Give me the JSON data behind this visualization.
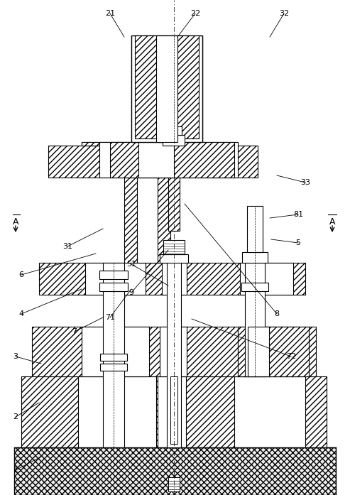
{
  "bg_color": "#ffffff",
  "line_color": "#000000",
  "figsize": [
    4.93,
    6.97
  ],
  "dpi": 100
}
